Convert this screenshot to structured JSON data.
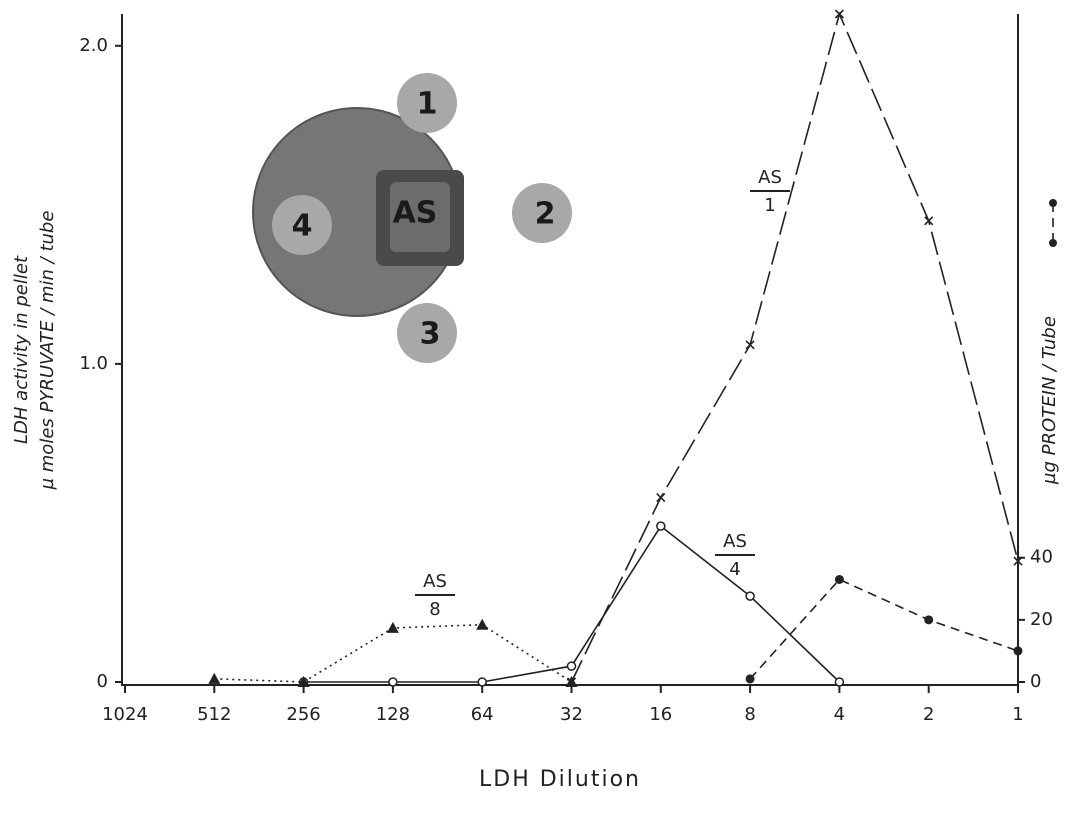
{
  "chart_data": {
    "type": "line",
    "x_label": "LDH Dilution",
    "y_label": [
      "LDH activity in pellet",
      "µ moles PYRUVATE / min / tube"
    ],
    "y2_label": "µg PROTEIN / Tube",
    "categories": [
      "1024",
      "512",
      "256",
      "128",
      "64",
      "32",
      "16",
      "8",
      "4",
      "2",
      "1"
    ],
    "ylim": [
      0,
      2.1
    ],
    "yticks": [
      0,
      {
        "value": 1,
        "label": "1.0"
      },
      {
        "value": 2,
        "label": "2.0"
      }
    ],
    "y2lim": [
      0,
      215
    ],
    "y2ticks": [
      0,
      20,
      40
    ],
    "inset_labels": [
      "1",
      "2",
      "3",
      "4",
      "AS"
    ],
    "series": [
      {
        "label": [
          "AS",
          "1"
        ],
        "color": "#222222",
        "marker": "x",
        "linestyle": "long-dash",
        "values": [
          null,
          null,
          null,
          null,
          null,
          0,
          0.58,
          1.06,
          2.1,
          1.45,
          0.38
        ]
      },
      {
        "label": [
          "AS",
          "4"
        ],
        "color": "#222222",
        "marker": "circle-open",
        "linestyle": "solid",
        "values": [
          null,
          null,
          0,
          0,
          0,
          0.05,
          0.49,
          0.27,
          0,
          null,
          null
        ]
      },
      {
        "label": [
          "AS",
          "8"
        ],
        "color": "#222222",
        "marker": "triangle",
        "linestyle": "dotted",
        "values": [
          null,
          0.01,
          0,
          0.17,
          0.18,
          0,
          null,
          null,
          null,
          null,
          null
        ]
      },
      {
        "color": "#222222",
        "marker": "circle",
        "linestyle": "dashed",
        "axis": "y2",
        "values": [
          null,
          null,
          null,
          null,
          null,
          null,
          null,
          1,
          33,
          20,
          10
        ]
      }
    ]
  }
}
